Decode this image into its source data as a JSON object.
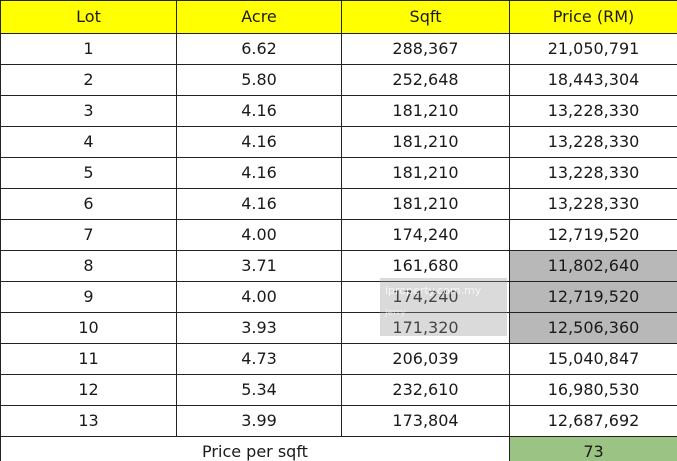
{
  "table": {
    "headers": {
      "lot": "Lot",
      "acre": "Acre",
      "sqft": "Sqft",
      "price": "Price (RM)"
    },
    "rows": [
      {
        "lot": "1",
        "acre": "6.62",
        "sqft": "288,367",
        "price": "21,050,791",
        "shaded": false
      },
      {
        "lot": "2",
        "acre": "5.80",
        "sqft": "252,648",
        "price": "18,443,304",
        "shaded": false
      },
      {
        "lot": "3",
        "acre": "4.16",
        "sqft": "181,210",
        "price": "13,228,330",
        "shaded": false
      },
      {
        "lot": "4",
        "acre": "4.16",
        "sqft": "181,210",
        "price": "13,228,330",
        "shaded": false
      },
      {
        "lot": "5",
        "acre": "4.16",
        "sqft": "181,210",
        "price": "13,228,330",
        "shaded": false
      },
      {
        "lot": "6",
        "acre": "4.16",
        "sqft": "181,210",
        "price": "13,228,330",
        "shaded": false
      },
      {
        "lot": "7",
        "acre": "4.00",
        "sqft": "174,240",
        "price": "12,719,520",
        "shaded": false
      },
      {
        "lot": "8",
        "acre": "3.71",
        "sqft": "161,680",
        "price": "11,802,640",
        "shaded": true
      },
      {
        "lot": "9",
        "acre": "4.00",
        "sqft": "174,240",
        "price": "12,719,520",
        "shaded": true
      },
      {
        "lot": "10",
        "acre": "3.93",
        "sqft": "171,320",
        "price": "12,506,360",
        "shaded": true
      },
      {
        "lot": "11",
        "acre": "4.73",
        "sqft": "206,039",
        "price": "15,040,847",
        "shaded": false
      },
      {
        "lot": "12",
        "acre": "5.34",
        "sqft": "232,610",
        "price": "16,980,530",
        "shaded": false
      },
      {
        "lot": "13",
        "acre": "3.99",
        "sqft": "173,804",
        "price": "12,687,692",
        "shaded": false
      }
    ],
    "footer": {
      "label": "Price per sqft",
      "value": "73"
    }
  },
  "watermark": {
    "text": "iproperty.com.my",
    "subtext": "Jerry"
  },
  "colors": {
    "header_bg": "#ffff00",
    "shaded_bg": "#b8b8b8",
    "footer_value_bg": "#9bc383",
    "border": "#222222"
  }
}
